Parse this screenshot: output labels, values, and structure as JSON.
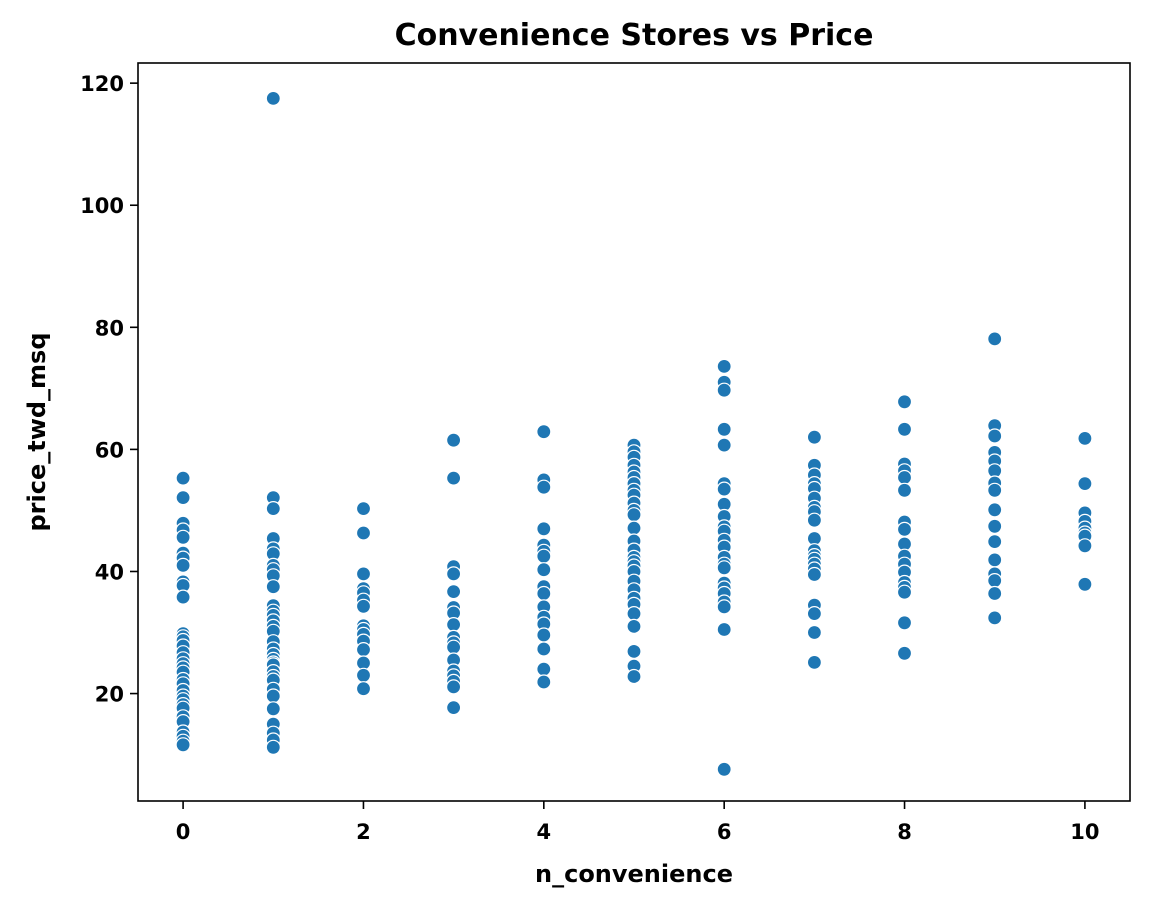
{
  "chart_data": {
    "type": "scatter",
    "title": "Convenience Stores vs Price",
    "xlabel": "n_convenience",
    "ylabel": "price_twd_msq",
    "xlim": [
      -0.5,
      10.5
    ],
    "ylim": [
      2.4,
      123.3
    ],
    "xticks": [
      0,
      2,
      4,
      6,
      8,
      10
    ],
    "yticks": [
      20,
      40,
      60,
      80,
      100,
      120
    ],
    "grid": false,
    "marker_color": "#1f77b4",
    "marker_edge_color": "#ffffff",
    "points": [
      [
        0,
        55.3
      ],
      [
        0,
        52.1
      ],
      [
        0,
        47.9
      ],
      [
        0,
        46.8
      ],
      [
        0,
        45.6
      ],
      [
        0,
        43.0
      ],
      [
        0,
        42.2
      ],
      [
        0,
        41.0
      ],
      [
        0,
        38.3
      ],
      [
        0,
        37.7
      ],
      [
        0,
        35.8
      ],
      [
        0,
        29.8
      ],
      [
        0,
        29.3
      ],
      [
        0,
        28.7
      ],
      [
        0,
        27.8
      ],
      [
        0,
        26.7
      ],
      [
        0,
        25.7
      ],
      [
        0,
        24.9
      ],
      [
        0,
        24.2
      ],
      [
        0,
        23.5
      ],
      [
        0,
        22.3
      ],
      [
        0,
        21.6
      ],
      [
        0,
        20.5
      ],
      [
        0,
        19.6
      ],
      [
        0,
        19.0
      ],
      [
        0,
        18.2
      ],
      [
        0,
        17.6
      ],
      [
        0,
        16.2
      ],
      [
        0,
        15.4
      ],
      [
        0,
        13.7
      ],
      [
        0,
        13.0
      ],
      [
        0,
        12.2
      ],
      [
        0,
        11.6
      ],
      [
        1,
        117.5
      ],
      [
        1,
        52.1
      ],
      [
        1,
        50.3
      ],
      [
        1,
        45.4
      ],
      [
        1,
        43.7
      ],
      [
        1,
        42.9
      ],
      [
        1,
        41.0
      ],
      [
        1,
        40.3
      ],
      [
        1,
        39.3
      ],
      [
        1,
        37.5
      ],
      [
        1,
        34.4
      ],
      [
        1,
        33.5
      ],
      [
        1,
        32.8
      ],
      [
        1,
        31.9
      ],
      [
        1,
        31.0
      ],
      [
        1,
        30.2
      ],
      [
        1,
        28.5
      ],
      [
        1,
        27.3
      ],
      [
        1,
        26.4
      ],
      [
        1,
        25.6
      ],
      [
        1,
        25.0
      ],
      [
        1,
        24.7
      ],
      [
        1,
        23.6
      ],
      [
        1,
        22.8
      ],
      [
        1,
        22.2
      ],
      [
        1,
        20.7
      ],
      [
        1,
        19.6
      ],
      [
        1,
        17.5
      ],
      [
        1,
        15.0
      ],
      [
        1,
        13.5
      ],
      [
        1,
        12.4
      ],
      [
        1,
        11.2
      ],
      [
        2,
        50.3
      ],
      [
        2,
        46.3
      ],
      [
        2,
        39.6
      ],
      [
        2,
        37.2
      ],
      [
        2,
        36.5
      ],
      [
        2,
        35.3
      ],
      [
        2,
        34.3
      ],
      [
        2,
        31.1
      ],
      [
        2,
        30.5
      ],
      [
        2,
        29.7
      ],
      [
        2,
        28.6
      ],
      [
        2,
        27.2
      ],
      [
        2,
        25.0
      ],
      [
        2,
        23.0
      ],
      [
        2,
        20.8
      ],
      [
        3,
        61.5
      ],
      [
        3,
        55.3
      ],
      [
        3,
        40.8
      ],
      [
        3,
        39.6
      ],
      [
        3,
        36.7
      ],
      [
        3,
        34.1
      ],
      [
        3,
        33.2
      ],
      [
        3,
        31.3
      ],
      [
        3,
        29.2
      ],
      [
        3,
        28.3
      ],
      [
        3,
        27.6
      ],
      [
        3,
        25.5
      ],
      [
        3,
        23.7
      ],
      [
        3,
        22.9
      ],
      [
        3,
        22.0
      ],
      [
        3,
        21.1
      ],
      [
        3,
        17.7
      ],
      [
        4,
        62.9
      ],
      [
        4,
        55.0
      ],
      [
        4,
        53.8
      ],
      [
        4,
        47.0
      ],
      [
        4,
        44.3
      ],
      [
        4,
        43.3
      ],
      [
        4,
        42.5
      ],
      [
        4,
        40.3
      ],
      [
        4,
        37.5
      ],
      [
        4,
        36.4
      ],
      [
        4,
        34.2
      ],
      [
        4,
        32.5
      ],
      [
        4,
        31.4
      ],
      [
        4,
        29.6
      ],
      [
        4,
        27.3
      ],
      [
        4,
        24.0
      ],
      [
        4,
        21.9
      ],
      [
        5,
        60.7
      ],
      [
        5,
        59.6
      ],
      [
        5,
        58.7
      ],
      [
        5,
        57.4
      ],
      [
        5,
        56.3
      ],
      [
        5,
        55.4
      ],
      [
        5,
        54.4
      ],
      [
        5,
        53.3
      ],
      [
        5,
        52.5
      ],
      [
        5,
        51.2
      ],
      [
        5,
        50.0
      ],
      [
        5,
        49.3
      ],
      [
        5,
        47.1
      ],
      [
        5,
        45.0
      ],
      [
        5,
        43.5
      ],
      [
        5,
        42.3
      ],
      [
        5,
        41.6
      ],
      [
        5,
        40.9
      ],
      [
        5,
        40.0
      ],
      [
        5,
        38.4
      ],
      [
        5,
        37.0
      ],
      [
        5,
        35.6
      ],
      [
        5,
        34.6
      ],
      [
        5,
        33.1
      ],
      [
        5,
        31.0
      ],
      [
        5,
        26.9
      ],
      [
        5,
        24.5
      ],
      [
        5,
        22.8
      ],
      [
        6,
        73.6
      ],
      [
        6,
        71.0
      ],
      [
        6,
        69.7
      ],
      [
        6,
        63.3
      ],
      [
        6,
        60.7
      ],
      [
        6,
        54.4
      ],
      [
        6,
        53.5
      ],
      [
        6,
        51.0
      ],
      [
        6,
        49.0
      ],
      [
        6,
        47.3
      ],
      [
        6,
        46.6
      ],
      [
        6,
        45.1
      ],
      [
        6,
        44.0
      ],
      [
        6,
        42.3
      ],
      [
        6,
        41.2
      ],
      [
        6,
        40.6
      ],
      [
        6,
        38.1
      ],
      [
        6,
        37.3
      ],
      [
        6,
        36.4
      ],
      [
        6,
        35.0
      ],
      [
        6,
        34.2
      ],
      [
        6,
        30.5
      ],
      [
        6,
        7.6
      ],
      [
        7,
        62.0
      ],
      [
        7,
        57.4
      ],
      [
        7,
        55.8
      ],
      [
        7,
        54.4
      ],
      [
        7,
        53.6
      ],
      [
        7,
        52.0
      ],
      [
        7,
        50.5
      ],
      [
        7,
        49.8
      ],
      [
        7,
        48.4
      ],
      [
        7,
        45.4
      ],
      [
        7,
        43.4
      ],
      [
        7,
        42.6
      ],
      [
        7,
        42.0
      ],
      [
        7,
        41.2
      ],
      [
        7,
        40.4
      ],
      [
        7,
        39.5
      ],
      [
        7,
        34.5
      ],
      [
        7,
        33.1
      ],
      [
        7,
        30.0
      ],
      [
        7,
        25.1
      ],
      [
        8,
        67.8
      ],
      [
        8,
        63.3
      ],
      [
        8,
        57.6
      ],
      [
        8,
        56.5
      ],
      [
        8,
        55.4
      ],
      [
        8,
        53.3
      ],
      [
        8,
        48.1
      ],
      [
        8,
        46.9
      ],
      [
        8,
        44.5
      ],
      [
        8,
        42.5
      ],
      [
        8,
        41.2
      ],
      [
        8,
        39.9
      ],
      [
        8,
        38.2
      ],
      [
        8,
        37.4
      ],
      [
        8,
        36.6
      ],
      [
        8,
        31.6
      ],
      [
        8,
        26.6
      ],
      [
        9,
        78.1
      ],
      [
        9,
        63.9
      ],
      [
        9,
        62.2
      ],
      [
        9,
        59.5
      ],
      [
        9,
        58.1
      ],
      [
        9,
        56.5
      ],
      [
        9,
        54.5
      ],
      [
        9,
        53.3
      ],
      [
        9,
        50.1
      ],
      [
        9,
        47.4
      ],
      [
        9,
        44.9
      ],
      [
        9,
        41.9
      ],
      [
        9,
        39.6
      ],
      [
        9,
        38.5
      ],
      [
        9,
        36.4
      ],
      [
        9,
        32.4
      ],
      [
        10,
        61.8
      ],
      [
        10,
        54.4
      ],
      [
        10,
        49.6
      ],
      [
        10,
        48.2
      ],
      [
        10,
        47.1
      ],
      [
        10,
        46.3
      ],
      [
        10,
        45.8
      ],
      [
        10,
        44.2
      ],
      [
        10,
        37.9
      ]
    ]
  }
}
